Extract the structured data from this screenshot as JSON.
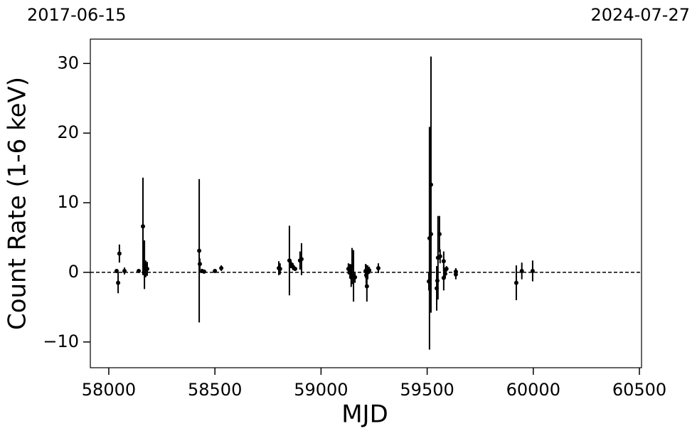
{
  "chart_data": {
    "type": "errorbar",
    "xlabel": "MJD",
    "ylabel": "Count Rate (1-6 keV)",
    "top_labels": [
      "2017-06-15",
      "2024-07-27"
    ],
    "color": "#000000",
    "hline": 0,
    "xlim": [
      57913,
      60510
    ],
    "ylim": [
      -13.7,
      33.5
    ],
    "xticks": [
      58000,
      58500,
      59000,
      59500,
      60000,
      60500
    ],
    "yticks": [
      -10,
      0,
      10,
      20,
      30
    ],
    "x": [
      58037,
      58044,
      58050,
      58074,
      58141,
      58161,
      58168,
      58174,
      58181,
      58426,
      58429,
      58439,
      58449,
      58500,
      58530,
      58801,
      58807,
      58851,
      58858,
      58868,
      58878,
      58901,
      58908,
      59129,
      59136,
      59142,
      59146,
      59153,
      59160,
      59210,
      59213,
      59216,
      59220,
      59227,
      59270,
      59508,
      59511,
      59518,
      59518,
      59545,
      59548,
      59551,
      59558,
      59561,
      59578,
      59578,
      59585,
      59591,
      59635,
      59635,
      59920,
      59946,
      59997
    ],
    "values": [
      0.2,
      -1.5,
      2.7,
      0.2,
      0.2,
      6.6,
      1.1,
      0.5,
      0.5,
      3.1,
      1.2,
      0.2,
      0.1,
      0.2,
      0.6,
      0.6,
      0.5,
      1.7,
      1.2,
      0.8,
      0.5,
      1.7,
      1.9,
      0.5,
      0.2,
      -0.7,
      0.9,
      -0.5,
      -0.7,
      0.2,
      -0.4,
      -2.0,
      0,
      0.3,
      0.6,
      -1.3,
      4.9,
      12.6,
      5.5,
      -2.3,
      -1.2,
      2.1,
      5.5,
      2.3,
      1.6,
      -0.8,
      -0.2,
      0.5,
      0.1,
      -0.3,
      -1.5,
      0.2,
      0.2
    ],
    "errors": [
      0.3,
      1.5,
      1.3,
      0.5,
      0.2,
      7,
      3.5,
      1.2,
      1,
      10.3,
      0.8,
      0.3,
      0.2,
      0.2,
      0.4,
      1.0,
      0.8,
      5,
      0.6,
      0.5,
      0.3,
      1.3,
      2.3,
      0.8,
      1.0,
      1.4,
      2.6,
      3.7,
      0.8,
      1.0,
      1.5,
      2.2,
      1,
      0.5,
      0.7,
      1.3,
      16,
      18.4,
      1,
      3.2,
      1,
      6,
      2.6,
      1,
      1.4,
      1.8,
      0.6,
      0.4,
      0.5,
      0.7,
      2.5,
      1.2,
      1.5
    ]
  }
}
